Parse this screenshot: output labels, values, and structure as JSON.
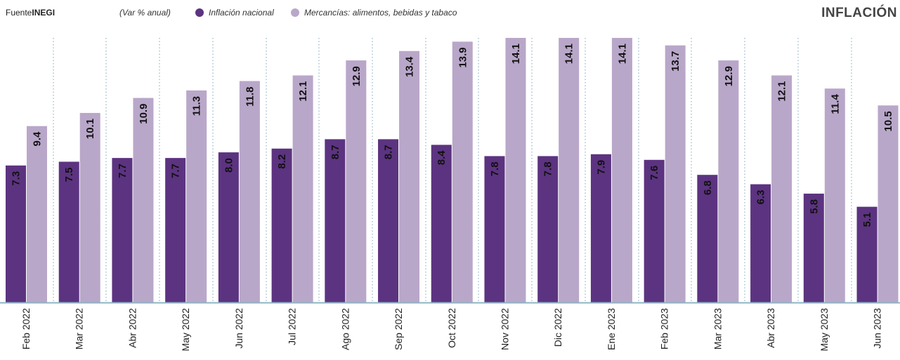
{
  "header": {
    "source_label": "Fuente",
    "source_name": "INEGI",
    "note": "(Var % anual)",
    "title": "INFLACIÓN"
  },
  "chart_data": {
    "type": "bar",
    "categories": [
      "Feb 2022",
      "Mar 2022",
      "Abr 2022",
      "May 2022",
      "Jun 2022",
      "Jul 2022",
      "Ago 2022",
      "Sep 2022",
      "Oct 2022",
      "Nov 2022",
      "Dic 2022",
      "Ene 2023",
      "Feb 2023",
      "Mar 2023",
      "Abr 2023",
      "May 2023",
      "Jun 2023"
    ],
    "series": [
      {
        "name": "Inflación nacional",
        "color": "#5c3380",
        "values": [
          7.3,
          7.5,
          7.7,
          7.7,
          8.0,
          8.2,
          8.7,
          8.7,
          8.4,
          7.8,
          7.8,
          7.9,
          7.6,
          6.8,
          6.3,
          5.8,
          5.1
        ]
      },
      {
        "name": "Mercancías: alimentos, bebidas  y tabaco",
        "color": "#b9a7c9",
        "values": [
          9.4,
          10.1,
          10.9,
          11.3,
          11.8,
          12.1,
          12.9,
          13.4,
          13.9,
          14.1,
          14.1,
          14.1,
          13.7,
          12.9,
          12.1,
          11.4,
          10.5
        ]
      }
    ],
    "value_labels": {
      "s0": [
        "7.3",
        "7.5",
        "7.7",
        "7.7",
        "8.0",
        "8.2",
        "8.7",
        "8.7",
        "8.4",
        "7.8",
        "7.8",
        "7.9",
        "7.6",
        "6.8",
        "6.3",
        "5.8",
        "5.1"
      ],
      "s1": [
        "9.4",
        "10.1",
        "10.9",
        "11.3",
        "11.8",
        "12.1",
        "12.9",
        "13.4",
        "13.9",
        "14.1",
        "14.1",
        "14.1",
        "13.7",
        "12.9",
        "12.1",
        "11.4",
        "10.5"
      ]
    },
    "ylim": [
      0,
      14.1
    ],
    "grid": "vertical dotted separators",
    "legend_position": "top"
  }
}
